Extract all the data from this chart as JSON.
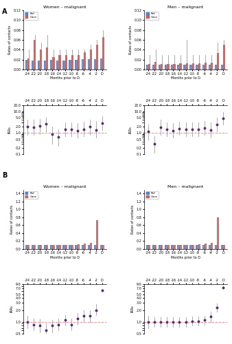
{
  "months_labels": [
    "-24",
    "-22",
    "-20",
    "-18",
    "-16",
    "-14",
    "-12",
    "-10",
    "-8",
    "-6",
    "-4",
    "-2",
    "D"
  ],
  "n_months": 13,
  "panel_A_women_bar_ref": [
    0.02,
    0.019,
    0.019,
    0.019,
    0.02,
    0.019,
    0.019,
    0.02,
    0.02,
    0.021,
    0.021,
    0.021,
    0.022
  ],
  "panel_A_women_bar_case": [
    0.022,
    0.06,
    0.04,
    0.045,
    0.025,
    0.03,
    0.03,
    0.03,
    0.03,
    0.035,
    0.04,
    0.05,
    0.065
  ],
  "panel_A_women_bar_ref_err": [
    0.005,
    0.005,
    0.005,
    0.005,
    0.005,
    0.005,
    0.005,
    0.005,
    0.005,
    0.005,
    0.005,
    0.005,
    0.005
  ],
  "panel_A_women_bar_case_err": [
    0.04,
    0.07,
    0.055,
    0.07,
    0.04,
    0.04,
    0.04,
    0.04,
    0.04,
    0.04,
    0.05,
    0.06,
    0.08
  ],
  "panel_A_men_bar_ref": [
    0.01,
    0.01,
    0.01,
    0.01,
    0.01,
    0.01,
    0.01,
    0.01,
    0.01,
    0.01,
    0.01,
    0.01,
    0.01
  ],
  "panel_A_men_bar_case": [
    0.012,
    0.015,
    0.012,
    0.012,
    0.012,
    0.013,
    0.013,
    0.013,
    0.013,
    0.014,
    0.014,
    0.033,
    0.05
  ],
  "panel_A_men_bar_ref_err": [
    0.003,
    0.003,
    0.003,
    0.003,
    0.003,
    0.003,
    0.003,
    0.003,
    0.003,
    0.003,
    0.003,
    0.003,
    0.003
  ],
  "panel_A_men_bar_case_err": [
    0.03,
    0.04,
    0.03,
    0.03,
    0.03,
    0.03,
    0.06,
    0.03,
    0.03,
    0.03,
    0.03,
    0.055,
    0.06
  ],
  "panel_A_women_irr": [
    1.9,
    1.8,
    2.1,
    2.7,
    0.85,
    0.65,
    1.5,
    1.5,
    1.3,
    1.5,
    1.9,
    1.4,
    2.8
  ],
  "panel_A_women_irr_lo": [
    0.8,
    0.8,
    0.9,
    1.2,
    0.3,
    0.25,
    0.7,
    0.7,
    0.6,
    0.7,
    0.8,
    0.6,
    1.4
  ],
  "panel_A_women_irr_hi": [
    4.0,
    4.0,
    4.5,
    5.0,
    2.0,
    1.5,
    3.0,
    3.0,
    2.8,
    3.2,
    4.0,
    3.5,
    6.0
  ],
  "panel_A_men_irr": [
    1.2,
    0.3,
    1.8,
    1.5,
    1.3,
    1.6,
    1.5,
    1.5,
    1.5,
    1.7,
    1.4,
    2.5,
    4.8
  ],
  "panel_A_men_irr_lo": [
    0.5,
    0.12,
    0.8,
    0.7,
    0.6,
    0.8,
    0.7,
    0.7,
    0.7,
    0.8,
    0.6,
    1.2,
    2.5
  ],
  "panel_A_men_irr_hi": [
    2.5,
    0.7,
    4.0,
    3.0,
    2.8,
    3.2,
    3.0,
    3.0,
    3.0,
    3.5,
    3.0,
    5.0,
    9.0
  ],
  "panel_B_women_bar_ref": [
    0.1,
    0.1,
    0.1,
    0.1,
    0.1,
    0.1,
    0.1,
    0.1,
    0.1,
    0.1,
    0.1,
    0.1,
    0.1
  ],
  "panel_B_women_bar_case": [
    0.1,
    0.1,
    0.11,
    0.1,
    0.1,
    0.11,
    0.11,
    0.11,
    0.12,
    0.13,
    0.15,
    0.72,
    0.1
  ],
  "panel_B_women_bar_ref_err": [
    0.01,
    0.01,
    0.01,
    0.01,
    0.01,
    0.01,
    0.01,
    0.01,
    0.01,
    0.01,
    0.01,
    0.01,
    0.01
  ],
  "panel_B_women_bar_case_err": [
    0.02,
    0.02,
    0.02,
    0.02,
    0.02,
    0.02,
    0.02,
    0.02,
    0.02,
    0.02,
    0.03,
    0.1,
    0.02
  ],
  "panel_B_men_bar_ref": [
    0.1,
    0.1,
    0.1,
    0.1,
    0.1,
    0.1,
    0.1,
    0.1,
    0.1,
    0.1,
    0.1,
    0.1,
    0.1
  ],
  "panel_B_men_bar_case": [
    0.1,
    0.1,
    0.1,
    0.1,
    0.1,
    0.11,
    0.11,
    0.11,
    0.12,
    0.13,
    0.15,
    0.8,
    0.1
  ],
  "panel_B_men_bar_ref_err": [
    0.01,
    0.01,
    0.01,
    0.01,
    0.01,
    0.01,
    0.01,
    0.01,
    0.01,
    0.01,
    0.01,
    0.01,
    0.01
  ],
  "panel_B_men_bar_case_err": [
    0.02,
    0.02,
    0.02,
    0.02,
    0.02,
    0.02,
    0.02,
    0.02,
    0.02,
    0.02,
    0.03,
    0.1,
    0.02
  ],
  "panel_B_women_irr": [
    1.0,
    0.85,
    0.8,
    0.6,
    0.8,
    0.85,
    1.1,
    0.85,
    1.2,
    1.45,
    1.4,
    2.0,
    6.3
  ],
  "panel_B_women_irr_lo": [
    0.7,
    0.6,
    0.55,
    0.4,
    0.55,
    0.6,
    0.8,
    0.6,
    0.85,
    1.0,
    1.0,
    1.5,
    5.8
  ],
  "panel_B_women_irr_hi": [
    1.4,
    1.2,
    1.15,
    0.9,
    1.1,
    1.2,
    1.5,
    1.2,
    1.7,
    2.0,
    2.0,
    2.8,
    6.9
  ],
  "panel_B_men_irr": [
    1.0,
    1.0,
    1.0,
    1.0,
    1.0,
    1.0,
    1.0,
    1.05,
    1.05,
    1.1,
    1.35,
    2.3,
    7.5
  ],
  "panel_B_men_irr_lo": [
    0.7,
    0.75,
    0.75,
    0.75,
    0.75,
    0.75,
    0.75,
    0.8,
    0.8,
    0.85,
    1.0,
    1.8,
    6.8
  ],
  "panel_B_men_irr_hi": [
    1.4,
    1.3,
    1.3,
    1.3,
    1.3,
    1.3,
    1.3,
    1.35,
    1.35,
    1.4,
    1.8,
    2.9,
    8.2
  ],
  "ref_color": "#4472C4",
  "case_color": "#C0504D",
  "irr_color": "#5B2C6F",
  "irr_line_color": "#9B59B6",
  "ref_line_color": "#E07070",
  "bar_err_color": "#AAAAAA"
}
